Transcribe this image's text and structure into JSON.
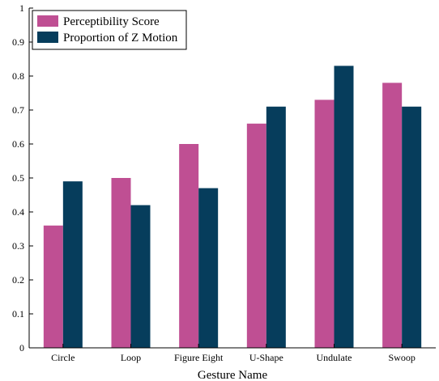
{
  "chart_data": {
    "type": "bar",
    "title": "",
    "xlabel": "Gesture Name",
    "ylabel": "",
    "ylim": [
      0,
      1
    ],
    "yticks": [
      0,
      0.1,
      0.2,
      0.3,
      0.4,
      0.5,
      0.6,
      0.7,
      0.8,
      0.9,
      1
    ],
    "ytick_labels": [
      "0",
      "0.1",
      "0.2",
      "0.3",
      "0.4",
      "0.5",
      "0.6",
      "0.7",
      "0.8",
      "0.9",
      "1"
    ],
    "categories": [
      "Circle",
      "Loop",
      "Figure Eight",
      "U-Shape",
      "Undulate",
      "Swoop"
    ],
    "series": [
      {
        "name": "Perceptibility Score",
        "color": "#bf4f93",
        "values": [
          0.36,
          0.5,
          0.6,
          0.66,
          0.73,
          0.78
        ]
      },
      {
        "name": "Proportion of Z Motion",
        "color": "#063d5c",
        "values": [
          0.49,
          0.42,
          0.47,
          0.71,
          0.83,
          0.71
        ]
      }
    ],
    "legend_position": "top-left",
    "grid": false
  }
}
